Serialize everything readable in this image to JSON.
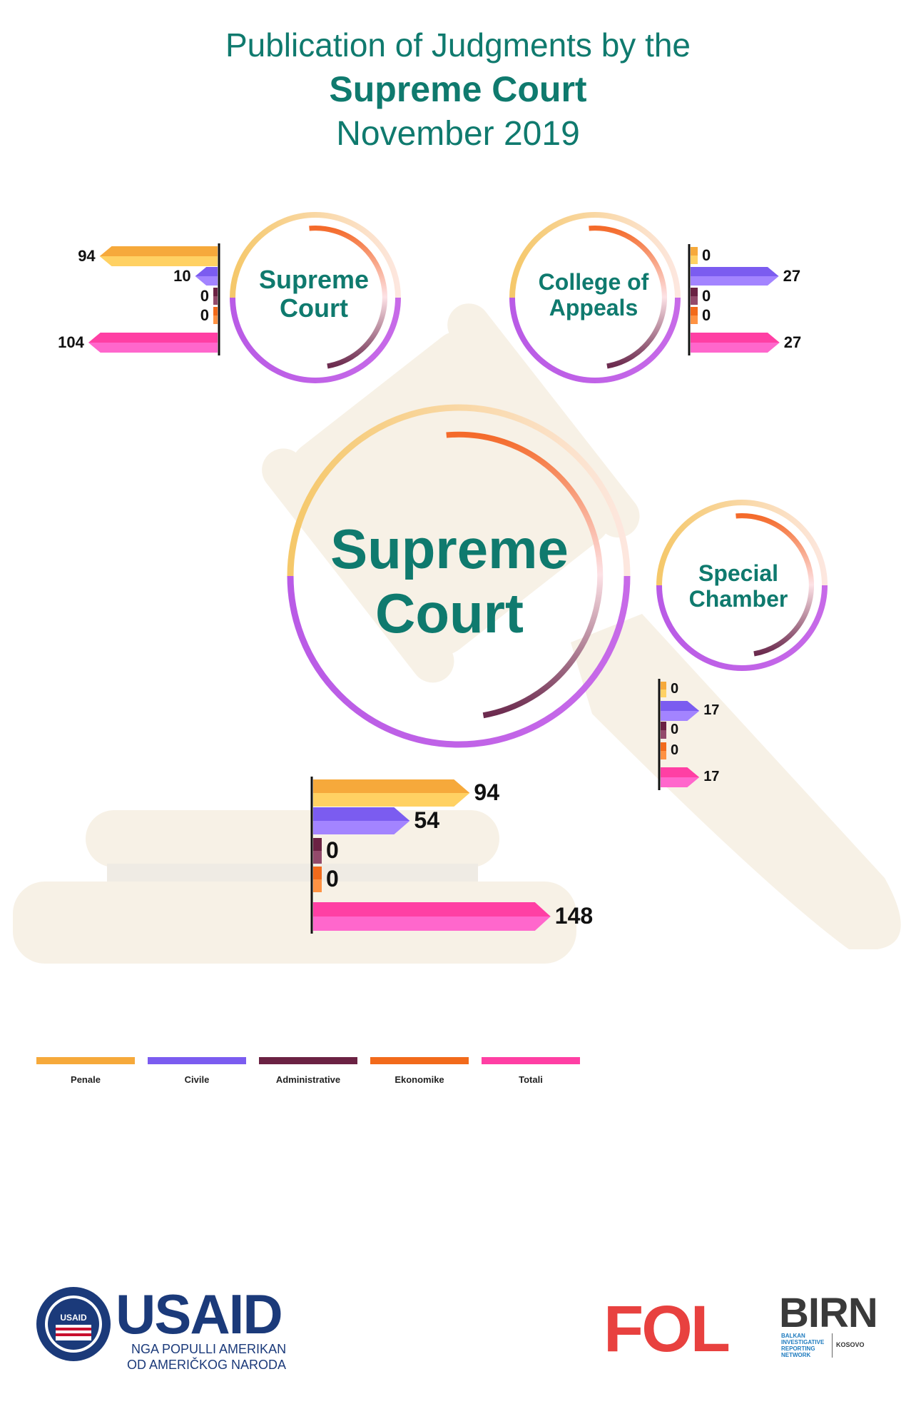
{
  "header": {
    "line1": "Publication of Judgments by the",
    "line2": "Supreme Court",
    "line3": "November 2019"
  },
  "courts": {
    "supreme_small": {
      "line1": "Supreme",
      "line2": "Court"
    },
    "college": {
      "line1": "College of",
      "line2": "Appeals"
    },
    "supreme_big": {
      "line1": "Supreme",
      "line2": "Court"
    },
    "special": {
      "line1": "Special",
      "line2": "Chamber"
    }
  },
  "colors": {
    "title": "#0f7a6e",
    "penale": "#f6a93b",
    "civile": "#7b5cf0",
    "administrative": "#6b2243",
    "ekonomike": "#f26a1b",
    "totali": "#ff3fa4",
    "ring_top": "#f5c26b",
    "ring_bottom": "#c15ee8",
    "gavel": "#f7f1e6"
  },
  "legend": [
    {
      "key": "penale",
      "label": "Penale"
    },
    {
      "key": "civile",
      "label": "Civile"
    },
    {
      "key": "administrative",
      "label": "Administrative"
    },
    {
      "key": "ekonomike",
      "label": "Ekonomike"
    },
    {
      "key": "totali",
      "label": "Totali"
    }
  ],
  "chart_data": [
    {
      "type": "bar",
      "title": "Supreme Court",
      "categories": [
        "Penale",
        "Civile",
        "Administrative",
        "Ekonomike",
        "Totali"
      ],
      "values": [
        94,
        10,
        0,
        0,
        104
      ],
      "labels": [
        "94",
        "10",
        "0",
        "0",
        "104"
      ]
    },
    {
      "type": "bar",
      "title": "College of Appeals",
      "categories": [
        "Penale",
        "Civile",
        "Administrative",
        "Ekonomike",
        "Totali"
      ],
      "values": [
        0,
        27,
        0,
        0,
        27
      ],
      "labels": [
        "0",
        "27",
        "0",
        "0",
        "27"
      ]
    },
    {
      "type": "bar",
      "title": "Special Chamber",
      "categories": [
        "Penale",
        "Civile",
        "Administrative",
        "Ekonomike",
        "Totali"
      ],
      "values": [
        0,
        17,
        0,
        0,
        17
      ],
      "labels": [
        "0",
        "17",
        "0",
        "0",
        "17"
      ]
    },
    {
      "type": "bar",
      "title": "Supreme Court",
      "categories": [
        "Penale",
        "Civile",
        "Administrative",
        "Ekonomike",
        "Totali"
      ],
      "values": [
        94,
        54,
        0,
        0,
        148
      ],
      "labels": [
        "94",
        "54",
        "0",
        "0",
        "148"
      ]
    }
  ],
  "logos": {
    "usaid_name": "USAID",
    "usaid_line1": "NGA POPULLI AMERIKAN",
    "usaid_line2": "OD AMERIČKOG NARODA",
    "usaid_seal": "USAID",
    "fol": "FOL",
    "birn": "BIRN",
    "birn_sub1": "BALKAN",
    "birn_sub2": "INVESTIGATIVE",
    "birn_sub3": "REPORTING",
    "birn_sub4": "NETWORK",
    "birn_country": "KOSOVO"
  }
}
